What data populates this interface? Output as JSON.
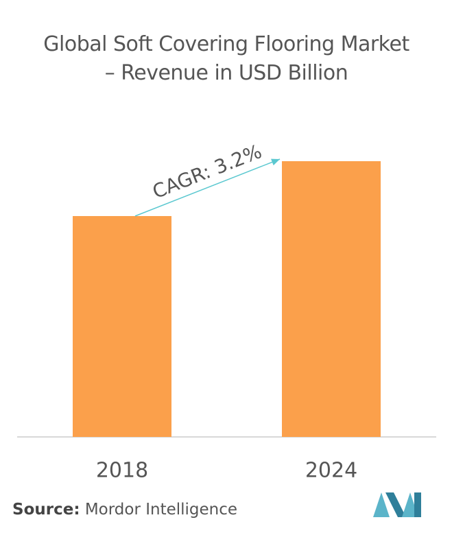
{
  "chart_data": {
    "type": "bar",
    "title": "Global Soft Covering Flooring Market – Revenue in USD Billion",
    "categories": [
      "2018",
      "2024"
    ],
    "values": [
      322,
      402
    ],
    "color": "#fba04b",
    "ylim": [
      0,
      402
    ],
    "annotation": "CAGR: 3.2%",
    "source_label": "Source:",
    "source": "Mordor Intelligence"
  }
}
